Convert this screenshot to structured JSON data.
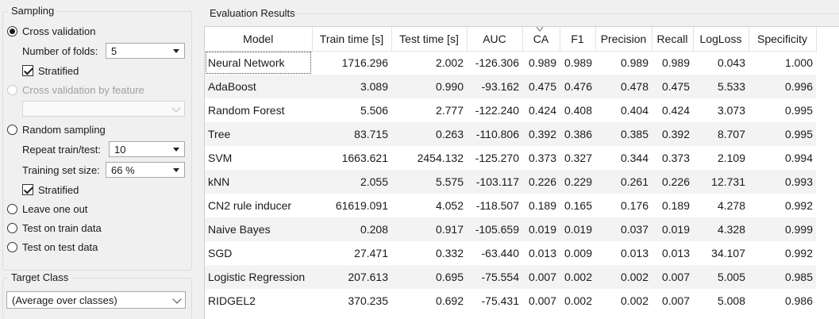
{
  "sampling": {
    "title": "Sampling",
    "cross_validation": "Cross validation",
    "folds_label": "Number of folds:",
    "folds_value": "5",
    "stratified_1": "Stratified",
    "cv_by_feature": "Cross validation by feature",
    "random_sampling": "Random sampling",
    "repeat_label": "Repeat train/test:",
    "repeat_value": "10",
    "training_size_label": "Training set size:",
    "training_size_value": "66 %",
    "stratified_2": "Stratified",
    "leave_one_out": "Leave one out",
    "test_on_train": "Test on train data",
    "test_on_test": "Test on test data"
  },
  "target": {
    "title": "Target Class",
    "value": "(Average over classes)"
  },
  "results": {
    "title": "Evaluation Results",
    "columns": [
      "Model",
      "Train time [s]",
      "Test time [s]",
      "AUC",
      "CA",
      "F1",
      "Precision",
      "Recall",
      "LogLoss",
      "Specificity"
    ],
    "rows": [
      [
        "Neural Network",
        "1716.296",
        "2.002",
        "-126.306",
        "0.989",
        "0.989",
        "0.989",
        "0.989",
        "0.043",
        "1.000"
      ],
      [
        "AdaBoost",
        "3.089",
        "0.990",
        "-93.162",
        "0.475",
        "0.476",
        "0.478",
        "0.475",
        "5.533",
        "0.996"
      ],
      [
        "Random Forest",
        "5.506",
        "2.777",
        "-122.240",
        "0.424",
        "0.408",
        "0.404",
        "0.424",
        "3.073",
        "0.995"
      ],
      [
        "Tree",
        "83.715",
        "0.263",
        "-110.806",
        "0.392",
        "0.386",
        "0.385",
        "0.392",
        "8.707",
        "0.995"
      ],
      [
        "SVM",
        "1663.621",
        "2454.132",
        "-125.270",
        "0.373",
        "0.327",
        "0.344",
        "0.373",
        "2.109",
        "0.994"
      ],
      [
        "kNN",
        "2.055",
        "5.575",
        "-103.117",
        "0.226",
        "0.229",
        "0.261",
        "0.226",
        "12.731",
        "0.993"
      ],
      [
        "CN2 rule inducer",
        "61619.091",
        "4.052",
        "-118.507",
        "0.189",
        "0.165",
        "0.176",
        "0.189",
        "4.278",
        "0.992"
      ],
      [
        "Naive Bayes",
        "0.208",
        "0.917",
        "-105.659",
        "0.019",
        "0.019",
        "0.037",
        "0.019",
        "4.328",
        "0.999"
      ],
      [
        "SGD",
        "27.471",
        "0.332",
        "-63.440",
        "0.013",
        "0.009",
        "0.013",
        "0.013",
        "34.107",
        "0.992"
      ],
      [
        "Logistic Regression",
        "207.613",
        "0.695",
        "-75.554",
        "0.007",
        "0.002",
        "0.002",
        "0.007",
        "5.005",
        "0.985"
      ],
      [
        "RIDGEL2",
        "370.235",
        "0.692",
        "-75.431",
        "0.007",
        "0.002",
        "0.002",
        "0.007",
        "5.008",
        "0.986"
      ]
    ]
  }
}
